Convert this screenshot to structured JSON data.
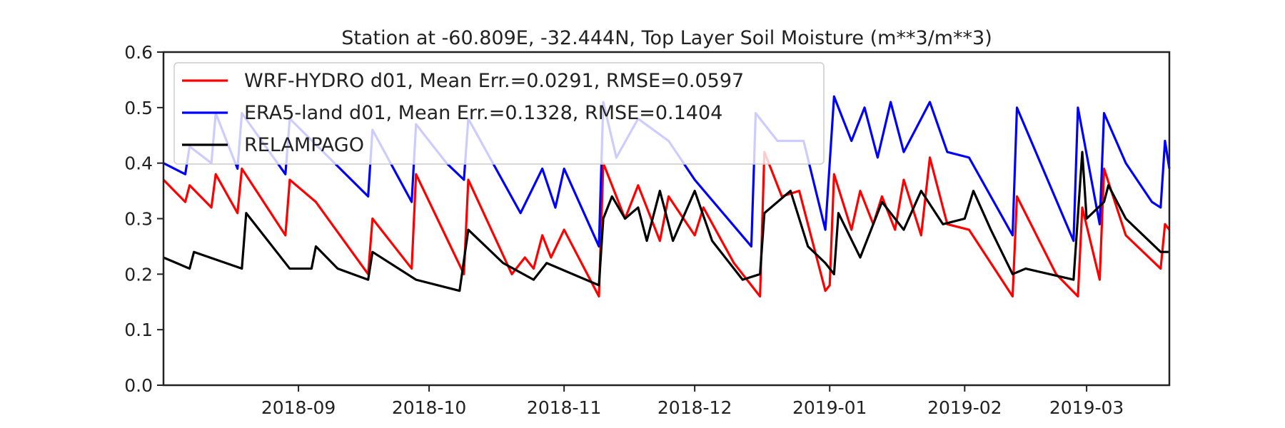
{
  "chart_data": {
    "type": "line",
    "title": "Station at -60.809E, -32.444N, Top Layer Soil Moisture (m**3/m**3)",
    "xlim": [
      "2018-08-01",
      "2019-03-20"
    ],
    "xticks": [
      {
        "value": "2018-09-01",
        "label": "2018-09"
      },
      {
        "value": "2018-10-01",
        "label": "2018-10"
      },
      {
        "value": "2018-11-01",
        "label": "2018-11"
      },
      {
        "value": "2018-12-01",
        "label": "2018-12"
      },
      {
        "value": "2019-01-01",
        "label": "2019-01"
      },
      {
        "value": "2019-02-01",
        "label": "2019-02"
      },
      {
        "value": "2019-03-01",
        "label": "2019-03"
      }
    ],
    "ylim": [
      0,
      0.6
    ],
    "yticks": [
      {
        "value": 0,
        "label": "0.0"
      },
      0.1,
      0.2,
      0.3,
      0.4,
      0.5,
      0.6
    ],
    "legend": "upper left",
    "series": [
      {
        "name": "WRF-HYDRO d01, Mean Err.=0.0291, RMSE=0.0597",
        "color": "#ff0000",
        "x": [
          "2018-08-01",
          "2018-08-06",
          "2018-08-07",
          "2018-08-12",
          "2018-08-13",
          "2018-08-18",
          "2018-08-19",
          "2018-08-29",
          "2018-08-30",
          "2018-09-05",
          "2018-09-17",
          "2018-09-18",
          "2018-09-27",
          "2018-09-28",
          "2018-10-09",
          "2018-10-10",
          "2018-10-20",
          "2018-10-23",
          "2018-10-25",
          "2018-10-27",
          "2018-10-29",
          "2018-11-01",
          "2018-11-09",
          "2018-11-10",
          "2018-11-15",
          "2018-11-18",
          "2018-11-23",
          "2018-11-25",
          "2018-12-01",
          "2018-12-03",
          "2018-12-10",
          "2018-12-16",
          "2018-12-17",
          "2018-12-21",
          "2018-12-25",
          "2018-12-31",
          "2019-01-01",
          "2019-01-02",
          "2019-01-06",
          "2019-01-08",
          "2019-01-11",
          "2019-01-13",
          "2019-01-16",
          "2019-01-18",
          "2019-01-22",
          "2019-01-24",
          "2019-01-28",
          "2019-02-02",
          "2019-02-12",
          "2019-02-13",
          "2019-02-22",
          "2019-02-27",
          "2019-02-28",
          "2019-03-04",
          "2019-03-05",
          "2019-03-10",
          "2019-03-18",
          "2019-03-19",
          "2019-03-20"
        ],
        "values": [
          0.37,
          0.33,
          0.36,
          0.32,
          0.38,
          0.31,
          0.39,
          0.27,
          0.37,
          0.33,
          0.2,
          0.3,
          0.21,
          0.38,
          0.2,
          0.37,
          0.2,
          0.23,
          0.21,
          0.27,
          0.23,
          0.28,
          0.16,
          0.4,
          0.3,
          0.36,
          0.26,
          0.34,
          0.27,
          0.32,
          0.22,
          0.16,
          0.42,
          0.34,
          0.35,
          0.17,
          0.18,
          0.38,
          0.28,
          0.35,
          0.29,
          0.34,
          0.28,
          0.37,
          0.27,
          0.41,
          0.29,
          0.28,
          0.16,
          0.34,
          0.2,
          0.16,
          0.32,
          0.19,
          0.39,
          0.27,
          0.21,
          0.29,
          0.28
        ]
      },
      {
        "name": "ERA5-land d01, Mean Err.=0.1328, RMSE=0.1404",
        "color": "#0000ff",
        "x": [
          "2018-08-01",
          "2018-08-06",
          "2018-08-07",
          "2018-08-12",
          "2018-08-13",
          "2018-08-18",
          "2018-08-19",
          "2018-08-29",
          "2018-08-30",
          "2018-09-17",
          "2018-09-18",
          "2018-09-27",
          "2018-09-28",
          "2018-10-05",
          "2018-10-09",
          "2018-10-10",
          "2018-10-22",
          "2018-10-27",
          "2018-10-30",
          "2018-11-01",
          "2018-11-09",
          "2018-11-10",
          "2018-11-13",
          "2018-11-18",
          "2018-11-25",
          "2018-12-01",
          "2018-12-14",
          "2018-12-15",
          "2018-12-20",
          "2018-12-26",
          "2018-12-31",
          "2019-01-02",
          "2019-01-06",
          "2019-01-09",
          "2019-01-12",
          "2019-01-15",
          "2019-01-18",
          "2019-01-24",
          "2019-01-28",
          "2019-02-02",
          "2019-02-12",
          "2019-02-13",
          "2019-02-26",
          "2019-02-27",
          "2019-03-04",
          "2019-03-05",
          "2019-03-10",
          "2019-03-16",
          "2019-03-18",
          "2019-03-19",
          "2019-03-20"
        ],
        "values": [
          0.4,
          0.38,
          0.43,
          0.4,
          0.49,
          0.39,
          0.49,
          0.38,
          0.48,
          0.34,
          0.46,
          0.33,
          0.47,
          0.4,
          0.37,
          0.48,
          0.31,
          0.39,
          0.32,
          0.39,
          0.25,
          0.51,
          0.41,
          0.48,
          0.44,
          0.37,
          0.25,
          0.49,
          0.44,
          0.44,
          0.28,
          0.52,
          0.44,
          0.5,
          0.41,
          0.51,
          0.42,
          0.51,
          0.42,
          0.41,
          0.27,
          0.5,
          0.26,
          0.5,
          0.29,
          0.49,
          0.4,
          0.33,
          0.32,
          0.44,
          0.39
        ]
      },
      {
        "name": "RELAMPAGO",
        "color": "#000000",
        "x": [
          "2018-08-01",
          "2018-08-07",
          "2018-08-08",
          "2018-08-19",
          "2018-08-20",
          "2018-08-25",
          "2018-08-30",
          "2018-09-04",
          "2018-09-05",
          "2018-09-10",
          "2018-09-17",
          "2018-09-18",
          "2018-09-28",
          "2018-10-08",
          "2018-10-10",
          "2018-10-18",
          "2018-10-25",
          "2018-10-28",
          "2018-11-09",
          "2018-11-10",
          "2018-11-12",
          "2018-11-15",
          "2018-11-18",
          "2018-11-20",
          "2018-11-23",
          "2018-11-26",
          "2018-12-01",
          "2018-12-05",
          "2018-12-12",
          "2018-12-16",
          "2018-12-17",
          "2018-12-23",
          "2018-12-27",
          "2018-12-31",
          "2019-01-02",
          "2019-01-03",
          "2019-01-08",
          "2019-01-13",
          "2019-01-18",
          "2019-01-22",
          "2019-01-27",
          "2019-02-01",
          "2019-02-03",
          "2019-02-07",
          "2019-02-12",
          "2019-02-15",
          "2019-02-26",
          "2019-02-28",
          "2019-03-01",
          "2019-03-05",
          "2019-03-06",
          "2019-03-10",
          "2019-03-18",
          "2019-03-20"
        ],
        "values": [
          0.23,
          0.21,
          0.24,
          0.21,
          0.31,
          0.26,
          0.21,
          0.21,
          0.25,
          0.21,
          0.19,
          0.24,
          0.19,
          0.17,
          0.28,
          0.22,
          0.19,
          0.22,
          0.18,
          0.3,
          0.34,
          0.3,
          0.32,
          0.26,
          0.35,
          0.26,
          0.35,
          0.26,
          0.19,
          0.2,
          0.31,
          0.35,
          0.25,
          0.22,
          0.2,
          0.31,
          0.23,
          0.33,
          0.28,
          0.35,
          0.29,
          0.3,
          0.35,
          0.28,
          0.2,
          0.21,
          0.19,
          0.42,
          0.3,
          0.33,
          0.36,
          0.3,
          0.24,
          0.24
        ]
      }
    ]
  }
}
